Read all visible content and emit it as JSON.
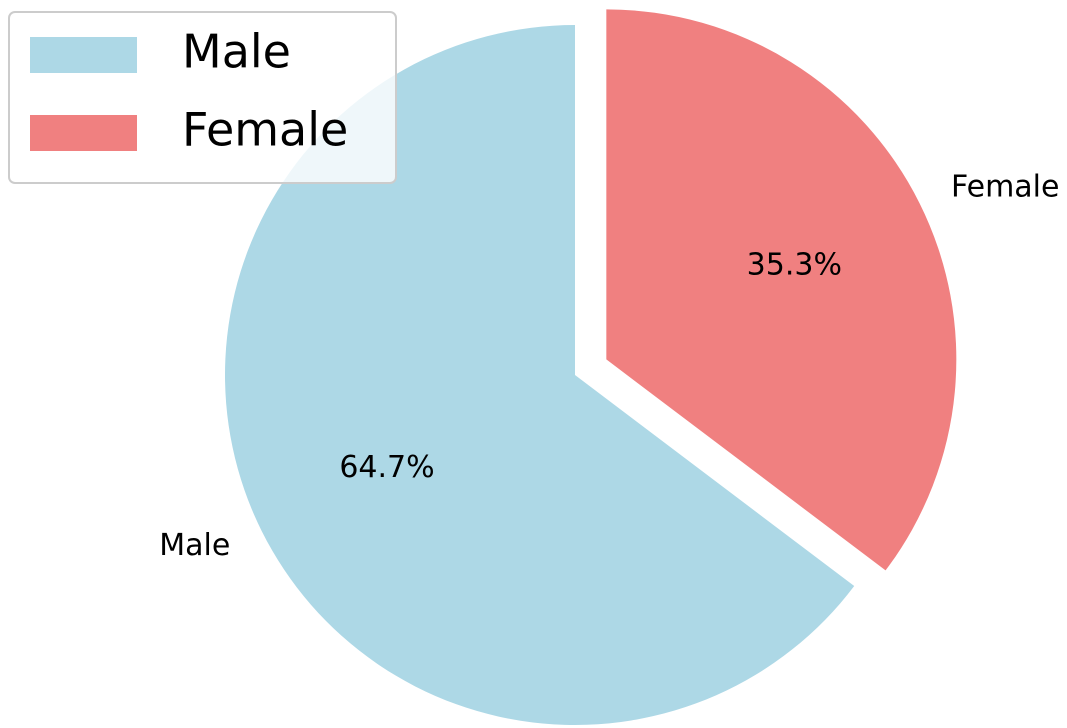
{
  "chart_data": {
    "type": "pie",
    "categories": [
      "Male",
      "Female"
    ],
    "values": [
      64.7,
      35.3
    ],
    "value_labels": [
      "64.7%",
      "35.3%"
    ],
    "colors": [
      "#add8e6",
      "#f08080"
    ],
    "explode": [
      0,
      0.1
    ],
    "legend": "upper left"
  }
}
